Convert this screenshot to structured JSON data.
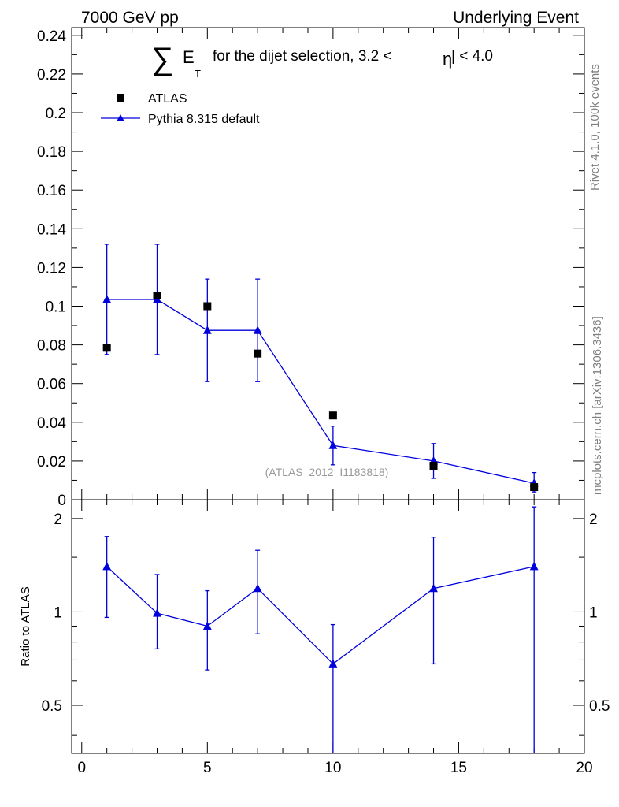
{
  "chart_data": {
    "type": "scatter",
    "header_left": "7000 GeV pp",
    "header_right": "Underlying Event",
    "title": {
      "symbol": "∑",
      "et_main": "E",
      "et_sub": "T",
      "text": "for the dijet selection, 3.2 <",
      "eta": "η",
      "tail": "| < 4.0"
    },
    "side_top": "Rivet 4.1.0,  100k events",
    "side_bottom": "mcplots.cern.ch [arXiv:1306.3436]",
    "watermark": "(ATLAS_2012_I1183818)",
    "ylabel_ratio": "Ratio to ATLAS",
    "legend": [
      "ATLAS",
      "Pythia 8.315 default"
    ],
    "xlim": [
      -0.4,
      20
    ],
    "ylim_main": [
      0,
      0.244
    ],
    "ylim_ratio": [
      0.35,
      2.3
    ],
    "main_y_ticks": [
      "0.24",
      "0.22",
      "0.2",
      "0.18",
      "0.16",
      "0.14",
      "0.12",
      "0.1",
      "0.08",
      "0.06",
      "0.04",
      "0.02",
      "0"
    ],
    "main_y_tick_values": [
      0.24,
      0.22,
      0.2,
      0.18,
      0.16,
      0.14,
      0.12,
      0.1,
      0.08,
      0.06,
      0.04,
      0.02,
      0
    ],
    "ratio_y_ticks": [
      "2",
      "1",
      "0.5"
    ],
    "ratio_y_tick_values": [
      2,
      1,
      0.5
    ],
    "x_ticks": [
      "0",
      "5",
      "10",
      "15",
      "20"
    ],
    "x_tick_values": [
      0,
      5,
      10,
      15,
      20
    ],
    "atlas": {
      "x": [
        1,
        3,
        5,
        7,
        10,
        14,
        18
      ],
      "y": [
        0.0785,
        0.1055,
        0.1,
        0.0755,
        0.0435,
        0.0175,
        0.0065
      ]
    },
    "pythia": {
      "x": [
        1,
        3,
        5,
        7,
        10,
        14,
        18
      ],
      "y": [
        0.1035,
        0.1035,
        0.0875,
        0.0875,
        0.028,
        0.02,
        0.0085
      ],
      "err_up": [
        0.132,
        0.132,
        0.114,
        0.114,
        0.038,
        0.029,
        0.014
      ],
      "err_down": [
        0.075,
        0.075,
        0.061,
        0.061,
        0.018,
        0.011,
        0.004
      ]
    },
    "ratio": {
      "x": [
        1,
        3,
        5,
        7,
        10,
        14,
        18
      ],
      "y": [
        1.4,
        0.99,
        0.9,
        1.19,
        0.68,
        1.19,
        1.4
      ],
      "err_up": [
        1.75,
        1.32,
        1.17,
        1.58,
        0.91,
        1.74,
        2.18
      ],
      "err_down": [
        0.96,
        0.76,
        0.65,
        0.85,
        0.35,
        0.68,
        0.35
      ]
    }
  }
}
